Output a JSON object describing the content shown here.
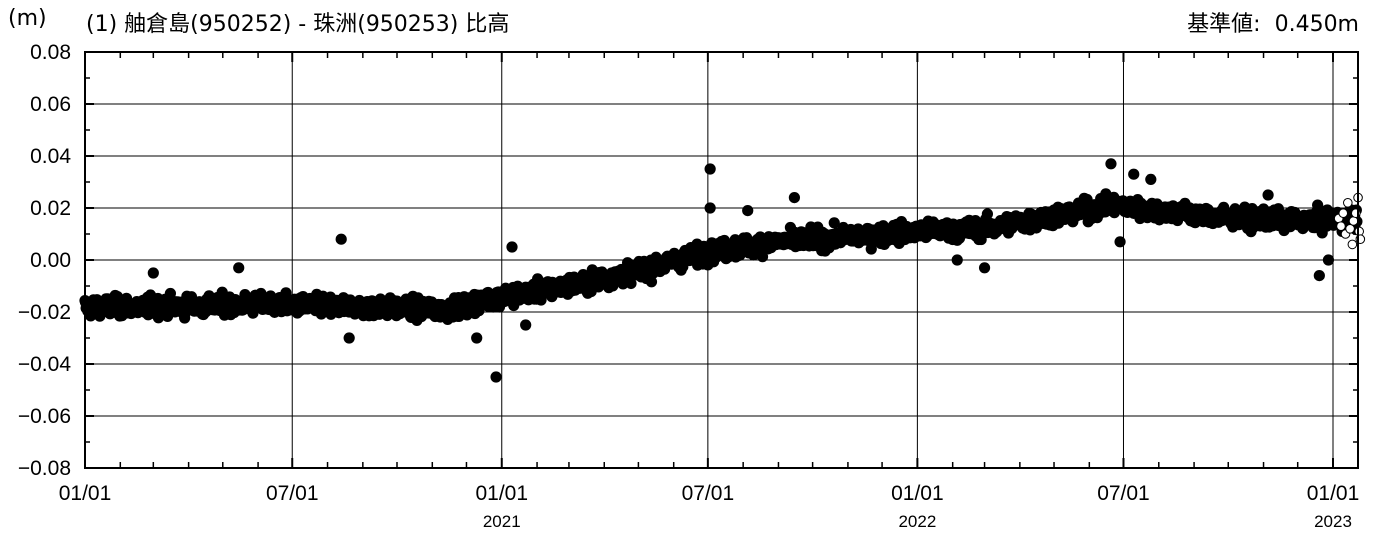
{
  "header": {
    "unit": "(m)",
    "title": "(1) 舳倉島(950252) - 珠洲(950253) 比高",
    "reference_label": "基準値:",
    "reference_value": "0.450m"
  },
  "chart_data": {
    "type": "scatter",
    "title": "(1) 舳倉島(950252) - 珠洲(950253) 比高",
    "ylabel": "(m)",
    "xlabel": "",
    "ylim": [
      -0.08,
      0.08
    ],
    "xlim": [
      "2020-01-01",
      "2023-01-01"
    ],
    "grid": true,
    "y_ticks": [
      "0.08",
      "0.06",
      "0.04",
      "0.02",
      "0.00",
      "−0.02",
      "−0.04",
      "−0.06",
      "−0.08"
    ],
    "x_ticks": [
      {
        "label": "01/01",
        "year": "",
        "date": "2020-01-01"
      },
      {
        "label": "07/01",
        "year": "",
        "date": "2020-07-01"
      },
      {
        "label": "01/01",
        "year": "2021",
        "date": "2021-01-01"
      },
      {
        "label": "07/01",
        "year": "",
        "date": "2021-07-01"
      },
      {
        "label": "01/01",
        "year": "2022",
        "date": "2022-01-01"
      },
      {
        "label": "07/01",
        "year": "",
        "date": "2022-07-01"
      },
      {
        "label": "01/01",
        "year": "2023",
        "date": "2023-01-01"
      }
    ],
    "series": [
      {
        "style": "filled",
        "x_range": [
          "2020-01-01",
          "2023-01-22"
        ],
        "trend": [
          {
            "x": "2020-01-01",
            "y": -0.018
          },
          {
            "x": "2020-03-01",
            "y": -0.018
          },
          {
            "x": "2020-06-01",
            "y": -0.017
          },
          {
            "x": "2020-09-01",
            "y": -0.018
          },
          {
            "x": "2020-11-15",
            "y": -0.019
          },
          {
            "x": "2021-01-01",
            "y": -0.014
          },
          {
            "x": "2021-03-01",
            "y": -0.01
          },
          {
            "x": "2021-05-01",
            "y": -0.004
          },
          {
            "x": "2021-07-01",
            "y": 0.003
          },
          {
            "x": "2021-09-01",
            "y": 0.007
          },
          {
            "x": "2021-11-01",
            "y": 0.009
          },
          {
            "x": "2022-01-01",
            "y": 0.011
          },
          {
            "x": "2022-03-01",
            "y": 0.012
          },
          {
            "x": "2022-05-01",
            "y": 0.017
          },
          {
            "x": "2022-06-20",
            "y": 0.021
          },
          {
            "x": "2022-08-01",
            "y": 0.019
          },
          {
            "x": "2022-10-01",
            "y": 0.016
          },
          {
            "x": "2022-12-01",
            "y": 0.015
          },
          {
            "x": "2023-01-22",
            "y": 0.016
          }
        ],
        "scatter_sd": 0.003,
        "outliers": [
          {
            "x": "2020-08-13",
            "y": 0.008
          },
          {
            "x": "2020-12-27",
            "y": -0.045
          },
          {
            "x": "2020-12-10",
            "y": -0.03
          },
          {
            "x": "2020-08-20",
            "y": -0.03
          },
          {
            "x": "2021-01-10",
            "y": 0.005
          },
          {
            "x": "2021-01-22",
            "y": -0.025
          },
          {
            "x": "2021-07-03",
            "y": 0.035
          },
          {
            "x": "2021-07-03",
            "y": 0.02
          },
          {
            "x": "2021-09-15",
            "y": 0.024
          },
          {
            "x": "2021-08-05",
            "y": 0.019
          },
          {
            "x": "2022-02-05",
            "y": 0.0
          },
          {
            "x": "2022-03-01",
            "y": -0.003
          },
          {
            "x": "2022-06-20",
            "y": 0.037
          },
          {
            "x": "2022-06-28",
            "y": 0.007
          },
          {
            "x": "2022-07-10",
            "y": 0.033
          },
          {
            "x": "2022-07-25",
            "y": 0.031
          },
          {
            "x": "2022-12-20",
            "y": -0.006
          },
          {
            "x": "2022-12-28",
            "y": 0.0
          },
          {
            "x": "2022-11-05",
            "y": 0.025
          },
          {
            "x": "2020-03-01",
            "y": -0.005
          },
          {
            "x": "2020-05-15",
            "y": -0.003
          }
        ]
      },
      {
        "style": "open",
        "x_range": [
          "2023-01-05",
          "2023-01-25"
        ],
        "points": [
          {
            "x": "2023-01-06",
            "y": 0.016
          },
          {
            "x": "2023-01-08",
            "y": 0.013
          },
          {
            "x": "2023-01-10",
            "y": 0.018
          },
          {
            "x": "2023-01-12",
            "y": 0.01
          },
          {
            "x": "2023-01-14",
            "y": 0.022
          },
          {
            "x": "2023-01-16",
            "y": 0.012
          },
          {
            "x": "2023-01-18",
            "y": 0.006
          },
          {
            "x": "2023-01-19",
            "y": 0.015
          },
          {
            "x": "2023-01-21",
            "y": 0.018
          },
          {
            "x": "2023-01-23",
            "y": 0.024
          },
          {
            "x": "2023-01-24",
            "y": 0.011
          },
          {
            "x": "2023-01-25",
            "y": 0.008
          }
        ]
      }
    ]
  }
}
